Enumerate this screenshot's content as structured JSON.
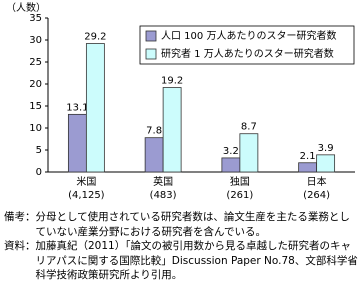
{
  "chart_data": {
    "type": "bar",
    "y_label": "（人数）",
    "categories": [
      "米国",
      "英国",
      "独国",
      "日本"
    ],
    "category_notes": [
      "(4,125)",
      "(483)",
      "(261)",
      "(264)"
    ],
    "series": [
      {
        "name": "人口 100 万人あたりのスター研究者数",
        "color": "#9b9bd1",
        "values": [
          13.1,
          7.8,
          3.2,
          2.1
        ]
      },
      {
        "name": "研究者 1 万人あたりのスター研究者数",
        "color": "#ccfcfc",
        "values": [
          29.2,
          19.2,
          8.7,
          3.9
        ]
      }
    ],
    "ylim": [
      0,
      35
    ],
    "yticks": [
      0,
      5,
      10,
      15,
      20,
      25,
      30,
      35
    ],
    "legend": "top-right"
  },
  "notes": [
    {
      "label": "備考：",
      "text": "分母として使用されている研究者数は、論文生産を主たる業務としていない産業分野における研究者を含んでいる。"
    },
    {
      "label": "資料：",
      "text": "加藤真紀（2011）「論文の被引用数から見る卓越した研究者のキャリアパスに関する国際比較」Discussion Paper No.78、文部科学省科学技術政策研究所より引用。"
    }
  ]
}
